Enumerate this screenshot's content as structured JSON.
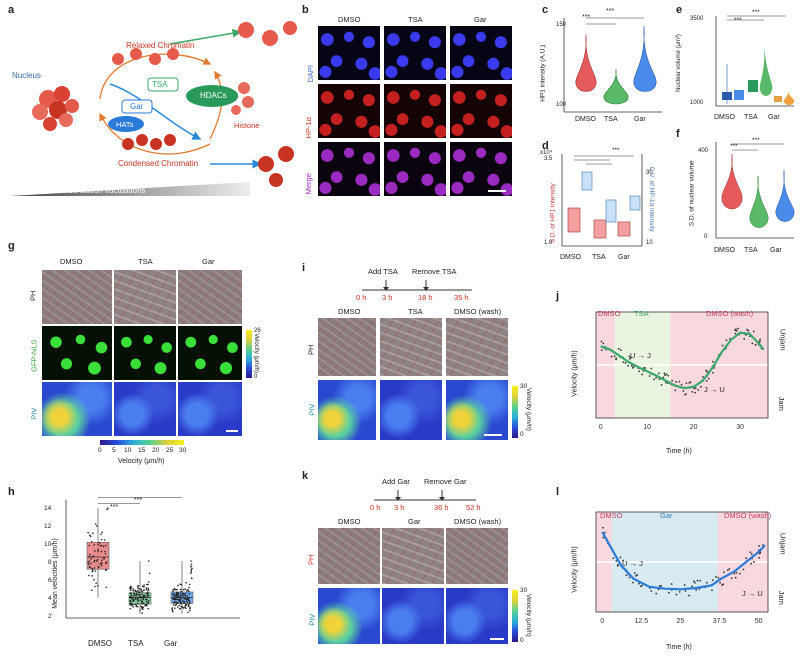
{
  "panels": {
    "a": "a",
    "b": "b",
    "c": "c",
    "d": "d",
    "e": "e",
    "f": "f",
    "g": "g",
    "h": "h",
    "i": "i",
    "j": "j",
    "k": "k",
    "l": "l"
  },
  "panel_a": {
    "nucleus": "Nucleus",
    "relaxed": "Relaxed Chromatin",
    "condensed": "Condensed Chromatin",
    "tsa": "TSA",
    "hdacs": "HDACs",
    "gar": "Gar",
    "hats": "HATs",
    "histone": "Histone",
    "bar_label": "Chromatin condensation fluctuations"
  },
  "panel_b": {
    "cols": [
      "DMSO",
      "TSA",
      "Gar"
    ],
    "rows": [
      "DAPI",
      "HP-1α",
      "Merge"
    ]
  },
  "conditions": [
    "DMSO",
    "TSA",
    "Gar"
  ],
  "sig": "***",
  "panel_c": {
    "ylabel": "HP1 intensity (A.U.)",
    "ticks": [
      "100",
      "110",
      "120",
      "130",
      "140",
      "150"
    ]
  },
  "panel_d": {
    "ylabel_left": "S.D. of HP1 intensity",
    "ylabel_right": "C.V. of HP-1α intensity",
    "exp": "x10⁴",
    "ticks_left": [
      "1.0",
      "1.5",
      "2.0",
      "2.5",
      "3.0",
      "3.5"
    ],
    "ticks_right": [
      "10",
      "15",
      "20",
      "25",
      "30"
    ]
  },
  "panel_e": {
    "ylabel": "Nuclear volume (μm³)",
    "ticks": [
      "1000",
      "1500",
      "2000",
      "2500",
      "3000",
      "3500"
    ]
  },
  "panel_f": {
    "ylabel": "S.D. of nuclear volume",
    "ticks": [
      "0",
      "100",
      "200",
      "300",
      "400"
    ]
  },
  "panel_g": {
    "cols": [
      "DMSO",
      "TSA",
      "Gar"
    ],
    "rows": [
      "PH",
      "GFP-NLS",
      "PIV"
    ],
    "cbar_label": "Velocity (μm/h)",
    "cbar_ticks": [
      "0",
      "26"
    ],
    "hbar_ticks": [
      "0",
      "5",
      "10",
      "15",
      "20",
      "25",
      "30"
    ],
    "hbar_label": "Velocity (μm/h)"
  },
  "panel_h": {
    "ylabel": "Mean velocities (μm/h)",
    "ticks": [
      "2",
      "4",
      "6",
      "8",
      "10",
      "12",
      "14"
    ],
    "chart_data": {
      "type": "box",
      "categories": [
        "DMSO",
        "TSA",
        "Gar"
      ],
      "median": [
        8.0,
        3.0,
        3.0
      ],
      "q1": [
        6.5,
        2.2,
        2.3
      ],
      "q3": [
        9.8,
        3.6,
        3.7
      ],
      "whisker_low": [
        3.0,
        1.0,
        1.0
      ],
      "whisker_high": [
        14.0,
        7.5,
        7.5
      ],
      "ylim": [
        0.5,
        15
      ]
    }
  },
  "panel_i": {
    "add": "Add TSA",
    "remove": "Remove TSA",
    "times": [
      "0 h",
      "3 h",
      "18 h",
      "35 h"
    ],
    "cols": [
      "DMSO",
      "TSA",
      "DMSO (wash)"
    ],
    "rows": [
      "PH",
      "PIV"
    ],
    "cbar_label": "Velocity (μm/h)",
    "cbar_ticks": [
      "0",
      "30"
    ]
  },
  "panel_j": {
    "regions": [
      "DMSO",
      "TSA",
      "DMSO (wash)"
    ],
    "ylabel": "Velocity (μm/h)",
    "xlabel": "Time (h)",
    "unjam": "Unjam",
    "jam": "Jam",
    "u_to_j": "U → J",
    "j_to_u": "J → U",
    "xticks": [
      "0",
      "10",
      "20",
      "30"
    ],
    "yticks": [
      "0.0",
      "2.5",
      "5.0",
      "7.5",
      "10.0",
      "12.5",
      "15.0"
    ],
    "chart_data": {
      "type": "line",
      "x": [
        0,
        2,
        4,
        6,
        8,
        10,
        12,
        14,
        16,
        18,
        20,
        22,
        24,
        26,
        28,
        30,
        32,
        34,
        35
      ],
      "y": [
        10.5,
        10.0,
        9.0,
        8.0,
        7.2,
        6.5,
        5.8,
        5.0,
        4.2,
        3.8,
        4.0,
        5.0,
        7.0,
        9.5,
        11.5,
        12.7,
        12.5,
        11.0,
        10.0
      ],
      "threshold": 7.5,
      "xlim": [
        -1,
        36
      ],
      "ylim": [
        -1,
        16
      ]
    }
  },
  "panel_k": {
    "add": "Add Gar",
    "remove": "Remove Gar",
    "times": [
      "0 h",
      "3 h",
      "36 h",
      "52 h"
    ],
    "cols": [
      "DMSO",
      "Gar",
      "DMSO (wash)"
    ],
    "rows": [
      "PH",
      "PIV"
    ],
    "cbar_label": "Velocity (μm/h)",
    "cbar_ticks": [
      "0",
      "30"
    ]
  },
  "panel_l": {
    "regions": [
      "DMSO",
      "Gar",
      "DMSO (wash)"
    ],
    "ylabel": "Velocity (μm/h)",
    "xlabel": "Time (h)",
    "unjam": "Unjam",
    "jam": "Jam",
    "u_to_j": "U → J",
    "j_to_u": "J → U",
    "xticks": [
      "0",
      "12.5",
      "25",
      "37.5",
      "50"
    ],
    "yticks": [
      "0.0",
      "2.5",
      "5.0",
      "7.5",
      "10.0",
      "12.5"
    ],
    "chart_data": {
      "type": "line",
      "x": [
        0,
        3,
        6,
        10,
        15,
        20,
        25,
        30,
        35,
        38,
        42,
        46,
        50,
        52
      ],
      "y": [
        11.0,
        8.5,
        6.0,
        4.0,
        2.8,
        2.5,
        2.4,
        2.6,
        3.0,
        4.0,
        5.0,
        6.5,
        8.0,
        9.0
      ],
      "threshold": 6.5,
      "xlim": [
        -2,
        53
      ],
      "ylim": [
        -1,
        14
      ]
    }
  }
}
